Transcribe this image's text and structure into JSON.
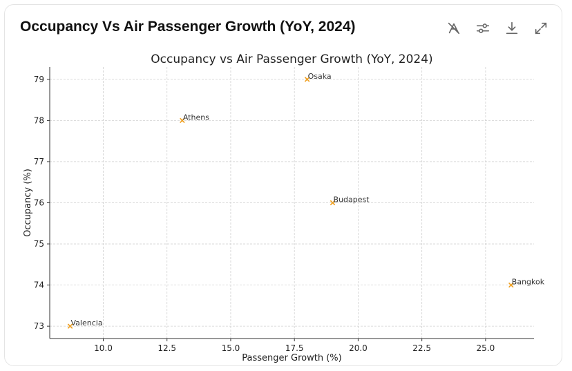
{
  "card": {
    "title": "Occupancy Vs Air Passenger Growth (YoY, 2024)"
  },
  "toolbar": [
    {
      "name": "hide-labels-button",
      "icon": "no-signal-icon"
    },
    {
      "name": "settings-button",
      "icon": "sliders-icon"
    },
    {
      "name": "download-button",
      "icon": "download-icon"
    },
    {
      "name": "expand-button",
      "icon": "expand-icon"
    }
  ],
  "chart_data": {
    "type": "scatter",
    "title": "Occupancy vs Air Passenger Growth (YoY, 2024)",
    "xlabel": "Passenger Growth (%)",
    "ylabel": "Occupancy (%)",
    "xlim": [
      7.9,
      26.9
    ],
    "ylim": [
      72.7,
      79.3
    ],
    "xticks": [
      10.0,
      12.5,
      15.0,
      17.5,
      20.0,
      22.5,
      25.0
    ],
    "xtick_labels": [
      "10.0",
      "12.5",
      "15.0",
      "17.5",
      "20.0",
      "22.5",
      "25.0"
    ],
    "yticks": [
      73,
      74,
      75,
      76,
      77,
      78,
      79
    ],
    "ytick_labels": [
      "73",
      "74",
      "75",
      "76",
      "77",
      "78",
      "79"
    ],
    "grid": true,
    "marker": "x",
    "color": "#f0a020",
    "points": [
      {
        "label": "Osaka",
        "x": 18.0,
        "y": 79
      },
      {
        "label": "Athens",
        "x": 13.1,
        "y": 78
      },
      {
        "label": "Budapest",
        "x": 19.0,
        "y": 76
      },
      {
        "label": "Bangkok",
        "x": 26.0,
        "y": 74
      },
      {
        "label": "Valencia",
        "x": 8.7,
        "y": 73
      }
    ]
  }
}
